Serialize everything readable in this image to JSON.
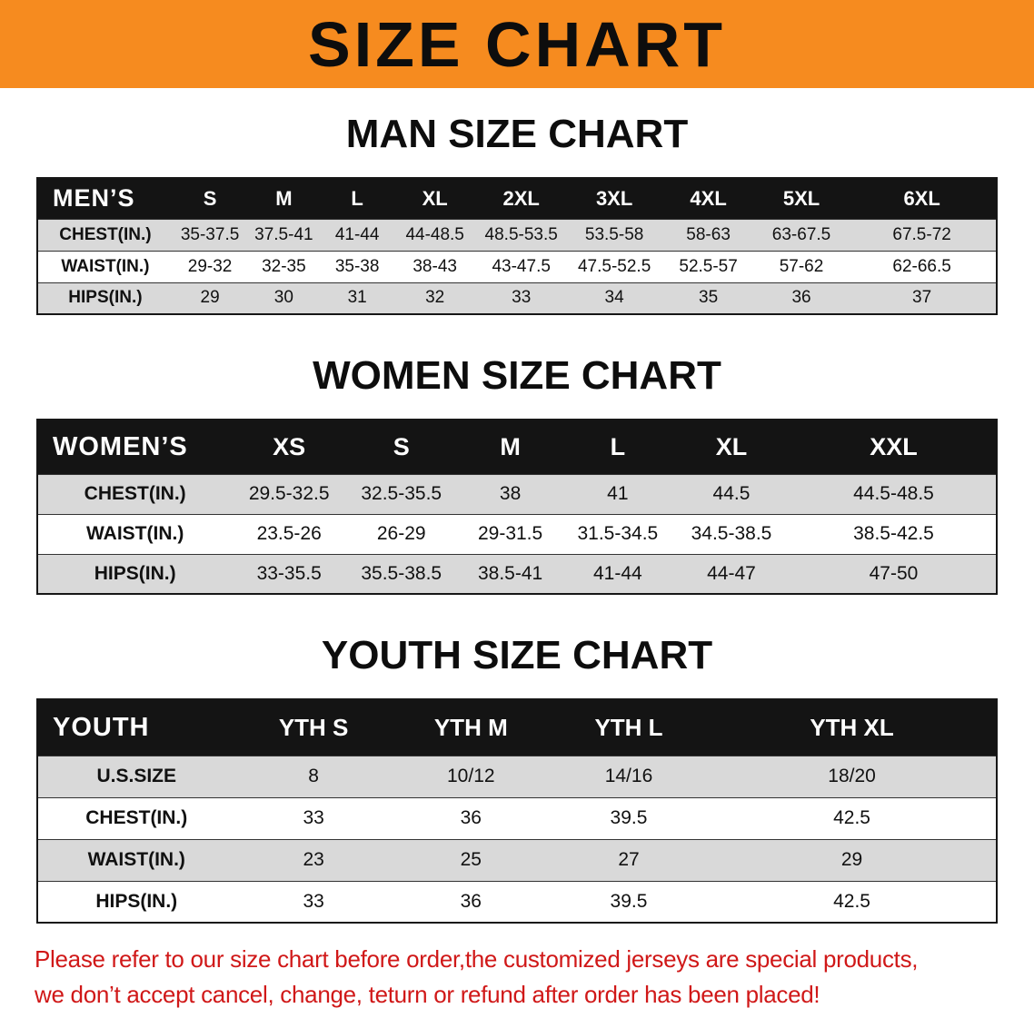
{
  "banner": {
    "title": "SIZE CHART"
  },
  "colors": {
    "banner_bg": "#f68b1f",
    "table_header_bg": "#141414",
    "table_header_text": "#ffffff",
    "row_stripe_bg": "#d9d9d9",
    "notice_text": "#d01818"
  },
  "sections": [
    {
      "id": "men",
      "heading": "MAN SIZE CHART",
      "table": {
        "corner_label": "MEN’S",
        "columns": [
          "S",
          "M",
          "L",
          "XL",
          "2XL",
          "3XL",
          "4XL",
          "5XL",
          "6XL"
        ],
        "rows": [
          {
            "label": "CHEST(IN.)",
            "values": [
              "35-37.5",
              "37.5-41",
              "41-44",
              "44-48.5",
              "48.5-53.5",
              "53.5-58",
              "58-63",
              "63-67.5",
              "67.5-72"
            ]
          },
          {
            "label": "WAIST(IN.)",
            "values": [
              "29-32",
              "32-35",
              "35-38",
              "38-43",
              "43-47.5",
              "47.5-52.5",
              "52.5-57",
              "57-62",
              "62-66.5"
            ]
          },
          {
            "label": "HIPS(IN.)",
            "values": [
              "29",
              "30",
              "31",
              "32",
              "33",
              "34",
              "35",
              "36",
              "37"
            ]
          }
        ]
      }
    },
    {
      "id": "women",
      "heading": "WOMEN SIZE CHART",
      "table": {
        "corner_label": "WOMEN’S",
        "columns": [
          "XS",
          "S",
          "M",
          "L",
          "XL",
          "XXL"
        ],
        "rows": [
          {
            "label": "CHEST(IN.)",
            "values": [
              "29.5-32.5",
              "32.5-35.5",
              "38",
              "41",
              "44.5",
              "44.5-48.5"
            ]
          },
          {
            "label": "WAIST(IN.)",
            "values": [
              "23.5-26",
              "26-29",
              "29-31.5",
              "31.5-34.5",
              "34.5-38.5",
              "38.5-42.5"
            ]
          },
          {
            "label": "HIPS(IN.)",
            "values": [
              "33-35.5",
              "35.5-38.5",
              "38.5-41",
              "41-44",
              "44-47",
              "47-50"
            ]
          }
        ]
      }
    },
    {
      "id": "youth",
      "heading": "YOUTH SIZE CHART",
      "table": {
        "corner_label": "YOUTH",
        "columns": [
          "YTH S",
          "YTH M",
          "YTH L",
          "YTH XL"
        ],
        "rows": [
          {
            "label": "U.S.SIZE",
            "values": [
              "8",
              "10/12",
              "14/16",
              "18/20"
            ]
          },
          {
            "label": "CHEST(IN.)",
            "values": [
              "33",
              "36",
              "39.5",
              "42.5"
            ]
          },
          {
            "label": "WAIST(IN.)",
            "values": [
              "23",
              "25",
              "27",
              "29"
            ]
          },
          {
            "label": "HIPS(IN.)",
            "values": [
              "33",
              "36",
              "39.5",
              "42.5"
            ]
          }
        ]
      }
    }
  ],
  "footer": {
    "line1": "Please refer to our size chart before order,the customized jerseys are special products,",
    "line2": "we don’t accept cancel, change, teturn or refund after order has been placed!"
  }
}
